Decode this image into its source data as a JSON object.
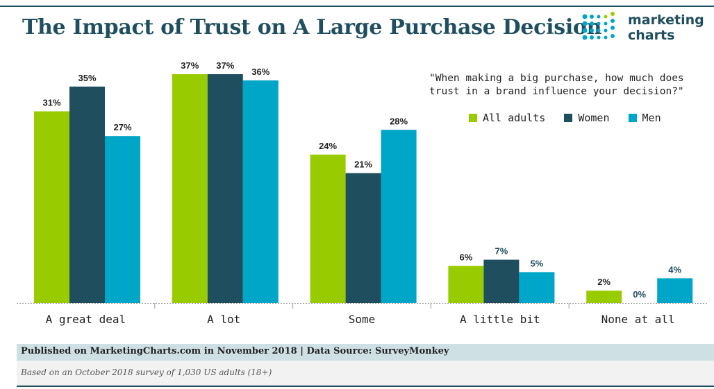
{
  "title": "The Impact of Trust on A Large Purchase Decision",
  "logo": {
    "line1": "marketing",
    "line2": "charts"
  },
  "footer": {
    "published": "Published on MarketingCharts.com in November 2018 | Data Source: SurveyMonkey",
    "note": "Based on an October 2018 survey of 1,030 US adults (18+)"
  },
  "colors": {
    "all_adults": "#99cc00",
    "women": "#1f4e5f",
    "men": "#00a6c8",
    "text": "#222222",
    "title": "#1f4e5f"
  },
  "chart_data": {
    "type": "bar",
    "subtitle": "\"When making a big purchase, how much does trust in a brand influence your decision?\"",
    "categories": [
      "A great deal",
      "A lot",
      "Some",
      "A little bit",
      "None at all"
    ],
    "series": [
      {
        "name": "All adults",
        "values": [
          31,
          37,
          24,
          6,
          2
        ],
        "labels": [
          "31%",
          "37%",
          "24%",
          "6%",
          "2%"
        ]
      },
      {
        "name": "Women",
        "values": [
          35,
          37,
          21,
          7,
          0
        ],
        "labels": [
          "35%",
          "37%",
          "21%",
          "7%",
          "0%"
        ]
      },
      {
        "name": "Men",
        "values": [
          27,
          36,
          28,
          5,
          4
        ],
        "labels": [
          "27%",
          "36%",
          "28%",
          "5%",
          "4%"
        ]
      }
    ],
    "ylim": [
      0,
      37
    ],
    "legend_position": "top-right",
    "grid": false
  }
}
